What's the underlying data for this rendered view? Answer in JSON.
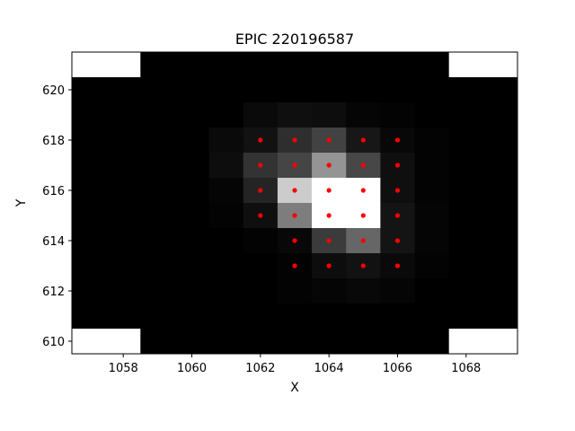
{
  "chart_data": {
    "type": "heatmap",
    "title": "EPIC 220196587",
    "xlabel": "X",
    "ylabel": "Y",
    "xlim": [
      1056.5,
      1069.5
    ],
    "ylim": [
      609.5,
      621.5
    ],
    "xticks": [
      1058,
      1060,
      1062,
      1064,
      1066,
      1068
    ],
    "yticks": [
      610,
      612,
      614,
      616,
      618,
      620
    ],
    "xtick_labels": [
      "1058",
      "1060",
      "1062",
      "1064",
      "1066",
      "1068"
    ],
    "ytick_labels": [
      "610",
      "612",
      "614",
      "616",
      "618",
      "620"
    ],
    "colormap": "gray",
    "mask_color": "#ff0000",
    "columns": [
      1057,
      1058,
      1059,
      1060,
      1061,
      1062,
      1063,
      1064,
      1065,
      1066,
      1067,
      1068,
      1069
    ],
    "rows": [
      621,
      620,
      619,
      618,
      617,
      616,
      615,
      614,
      613,
      612,
      611,
      610
    ],
    "grid_brightness": [
      [
        null,
        null,
        0,
        0,
        0,
        0,
        0,
        0,
        0,
        0,
        0,
        null,
        null
      ],
      [
        0,
        0,
        0,
        0,
        0,
        0,
        0,
        0,
        0,
        0,
        0,
        0,
        0
      ],
      [
        0,
        0,
        0,
        0,
        0,
        0.04,
        0.06,
        0.05,
        0.02,
        0.01,
        0,
        0,
        0
      ],
      [
        0,
        0,
        0,
        0,
        0.04,
        0.07,
        0.18,
        0.26,
        0.09,
        0.03,
        0.01,
        0,
        0
      ],
      [
        0,
        0,
        0,
        0,
        0.05,
        0.2,
        0.27,
        0.58,
        0.28,
        0.06,
        0.01,
        0,
        0
      ],
      [
        0,
        0,
        0,
        0,
        0.02,
        0.14,
        0.8,
        1.0,
        1.0,
        0.06,
        0.01,
        0,
        0
      ],
      [
        0,
        0,
        0,
        0,
        0.01,
        0.06,
        0.49,
        1.0,
        1.0,
        0.08,
        0.02,
        0,
        0
      ],
      [
        0,
        0,
        0,
        0,
        0,
        0.01,
        0.03,
        0.23,
        0.4,
        0.08,
        0.02,
        0,
        0
      ],
      [
        0,
        0,
        0,
        0,
        0,
        0,
        0.01,
        0.05,
        0.07,
        0.04,
        0.01,
        0,
        0
      ],
      [
        0,
        0,
        0,
        0,
        0,
        0,
        0.01,
        0.02,
        0.03,
        0.02,
        0,
        0,
        0
      ],
      [
        0,
        0,
        0,
        0,
        0,
        0,
        0,
        0,
        0,
        0,
        0,
        0,
        0
      ],
      [
        null,
        null,
        0,
        0,
        0,
        0,
        0,
        0,
        0,
        0,
        0,
        null,
        null
      ]
    ],
    "aperture_mask": [
      [
        1062,
        618
      ],
      [
        1063,
        618
      ],
      [
        1064,
        618
      ],
      [
        1065,
        618
      ],
      [
        1066,
        618
      ],
      [
        1062,
        617
      ],
      [
        1063,
        617
      ],
      [
        1064,
        617
      ],
      [
        1065,
        617
      ],
      [
        1066,
        617
      ],
      [
        1062,
        616
      ],
      [
        1063,
        616
      ],
      [
        1064,
        616
      ],
      [
        1065,
        616
      ],
      [
        1066,
        616
      ],
      [
        1062,
        615
      ],
      [
        1063,
        615
      ],
      [
        1064,
        615
      ],
      [
        1065,
        615
      ],
      [
        1066,
        615
      ],
      [
        1063,
        614
      ],
      [
        1064,
        614
      ],
      [
        1065,
        614
      ],
      [
        1066,
        614
      ],
      [
        1063,
        613
      ],
      [
        1064,
        613
      ],
      [
        1065,
        613
      ],
      [
        1066,
        613
      ]
    ]
  }
}
